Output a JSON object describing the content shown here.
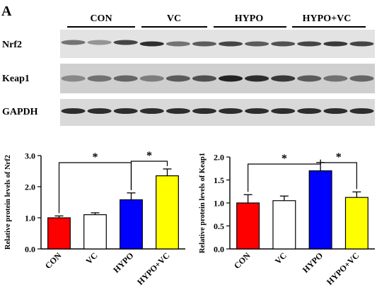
{
  "panel_label": "A",
  "blot": {
    "groups": [
      "CON",
      "VC",
      "HYPO",
      "HYPO+VC"
    ],
    "rows": [
      "Nrf2",
      "Keap1",
      "GAPDH"
    ]
  },
  "significance_marker": "*",
  "chart_data": [
    {
      "type": "bar",
      "categories": [
        "CON",
        "VC",
        "HYPO",
        "HYPO+VC"
      ],
      "values": [
        1.0,
        1.1,
        1.58,
        2.35
      ],
      "errors": [
        0.06,
        0.06,
        0.22,
        0.22
      ],
      "colors": [
        "#ff0000",
        "#ffffff",
        "#0000ff",
        "#ffff00"
      ],
      "ylabel": "Relative protein levels of Nrf2",
      "ylim": [
        0,
        3.0
      ],
      "yticks": [
        "0.0",
        "1.0",
        "2.0",
        "3.0"
      ],
      "yticks_values": [
        0,
        1,
        2,
        3
      ],
      "significance": [
        {
          "from": 0,
          "to": 2,
          "label": "*"
        },
        {
          "from": 2,
          "to": 3,
          "label": "*"
        }
      ]
    },
    {
      "type": "bar",
      "categories": [
        "CON",
        "VC",
        "HYPO",
        "HYPO+VC"
      ],
      "values": [
        1.0,
        1.05,
        1.7,
        1.12
      ],
      "errors": [
        0.18,
        0.1,
        0.18,
        0.12
      ],
      "colors": [
        "#ff0000",
        "#ffffff",
        "#0000ff",
        "#ffff00"
      ],
      "ylabel": "Relative protein levels of Keap1",
      "ylim": [
        0,
        2.0
      ],
      "yticks": [
        "0.0",
        "0.5",
        "1.0",
        "1.5",
        "2.0"
      ],
      "yticks_values": [
        0,
        0.5,
        1.0,
        1.5,
        2.0
      ],
      "significance": [
        {
          "from": 0,
          "to": 2,
          "label": "*"
        },
        {
          "from": 2,
          "to": 3,
          "label": "*"
        }
      ]
    }
  ]
}
